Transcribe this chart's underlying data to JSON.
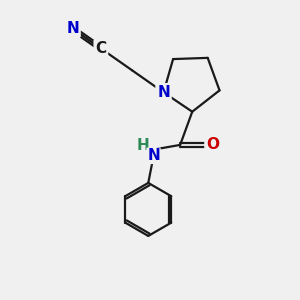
{
  "bg_color": "#f0f0f0",
  "bond_color": "#1a1a1a",
  "N_color": "#0000cc",
  "O_color": "#cc0000",
  "NH_color": "#2e8b57",
  "line_width": 1.6,
  "font_size": 11,
  "figsize": [
    3.0,
    3.0
  ],
  "dpi": 100,
  "xlim": [
    0,
    10
  ],
  "ylim": [
    0,
    10
  ]
}
